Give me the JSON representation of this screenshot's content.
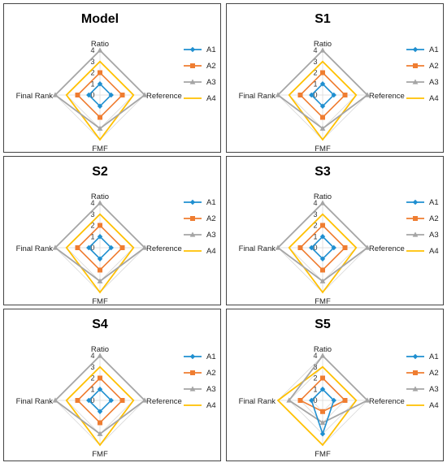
{
  "chart_data": [
    {
      "type": "radar",
      "title": "Model",
      "axes": [
        "Ratio",
        "Reference",
        "FMF",
        "Final Rank"
      ],
      "rmax": 4,
      "tick_labels": [
        "0",
        "1",
        "2",
        "3",
        "4"
      ],
      "series": [
        {
          "name": "A1",
          "values": [
            1,
            1,
            1,
            1
          ]
        },
        {
          "name": "A2",
          "values": [
            2,
            2,
            2,
            2
          ]
        },
        {
          "name": "A3",
          "values": [
            4,
            4,
            3,
            4
          ]
        },
        {
          "name": "A4",
          "values": [
            3,
            3,
            4,
            3
          ]
        }
      ]
    },
    {
      "type": "radar",
      "title": "S1",
      "axes": [
        "Ratio",
        "Reference",
        "FMF",
        "Final Rank"
      ],
      "rmax": 4,
      "tick_labels": [
        "0",
        "1",
        "2",
        "3",
        "4"
      ],
      "series": [
        {
          "name": "A1",
          "values": [
            1,
            1,
            1,
            1
          ]
        },
        {
          "name": "A2",
          "values": [
            2,
            2,
            2,
            2
          ]
        },
        {
          "name": "A3",
          "values": [
            4,
            4,
            3,
            4
          ]
        },
        {
          "name": "A4",
          "values": [
            3,
            3,
            4,
            3
          ]
        }
      ]
    },
    {
      "type": "radar",
      "title": "S2",
      "axes": [
        "Ratio",
        "Reference",
        "FMF",
        "Final Rank"
      ],
      "rmax": 4,
      "tick_labels": [
        "0",
        "1",
        "2",
        "3",
        "4"
      ],
      "series": [
        {
          "name": "A1",
          "values": [
            1,
            1,
            1,
            1
          ]
        },
        {
          "name": "A2",
          "values": [
            2,
            2,
            2,
            2
          ]
        },
        {
          "name": "A3",
          "values": [
            4,
            4,
            3,
            4
          ]
        },
        {
          "name": "A4",
          "values": [
            3,
            3,
            4,
            3
          ]
        }
      ]
    },
    {
      "type": "radar",
      "title": "S3",
      "axes": [
        "Ratio",
        "Reference",
        "FMF",
        "Final Rank"
      ],
      "rmax": 4,
      "tick_labels": [
        "0",
        "1",
        "2",
        "3",
        "4"
      ],
      "series": [
        {
          "name": "A1",
          "values": [
            1,
            1,
            1,
            1
          ]
        },
        {
          "name": "A2",
          "values": [
            2,
            2,
            2,
            2
          ]
        },
        {
          "name": "A3",
          "values": [
            4,
            4,
            3,
            4
          ]
        },
        {
          "name": "A4",
          "values": [
            3,
            3,
            4,
            3
          ]
        }
      ]
    },
    {
      "type": "radar",
      "title": "S4",
      "axes": [
        "Ratio",
        "Reference",
        "FMF",
        "Final Rank"
      ],
      "rmax": 4,
      "tick_labels": [
        "0",
        "1",
        "2",
        "3",
        "4"
      ],
      "series": [
        {
          "name": "A1",
          "values": [
            1,
            1,
            1,
            1
          ]
        },
        {
          "name": "A2",
          "values": [
            2,
            2,
            2,
            2
          ]
        },
        {
          "name": "A3",
          "values": [
            4,
            4,
            3,
            4
          ]
        },
        {
          "name": "A4",
          "values": [
            3,
            3,
            4,
            3
          ]
        }
      ]
    },
    {
      "type": "radar",
      "title": "S5",
      "axes": [
        "Ratio",
        "Reference",
        "FMF",
        "Final Rank"
      ],
      "rmax": 4,
      "tick_labels": [
        "0",
        "1",
        "2",
        "3",
        "4"
      ],
      "series": [
        {
          "name": "A1",
          "values": [
            1,
            1,
            3,
            1
          ]
        },
        {
          "name": "A2",
          "values": [
            2,
            2,
            1,
            2
          ]
        },
        {
          "name": "A3",
          "values": [
            4,
            4,
            2,
            3
          ]
        },
        {
          "name": "A4",
          "values": [
            3,
            3,
            4,
            4
          ]
        }
      ]
    }
  ],
  "legend_order": [
    "A1",
    "A2",
    "A3",
    "A4"
  ],
  "series_colors": {
    "A1": "#1f8fd0",
    "A2": "#ef7d31",
    "A3": "#a5a5a5",
    "A4": "#ffc000"
  },
  "series_markers": {
    "A1": "diamond",
    "A2": "square",
    "A3": "triangle",
    "A4": "none"
  }
}
